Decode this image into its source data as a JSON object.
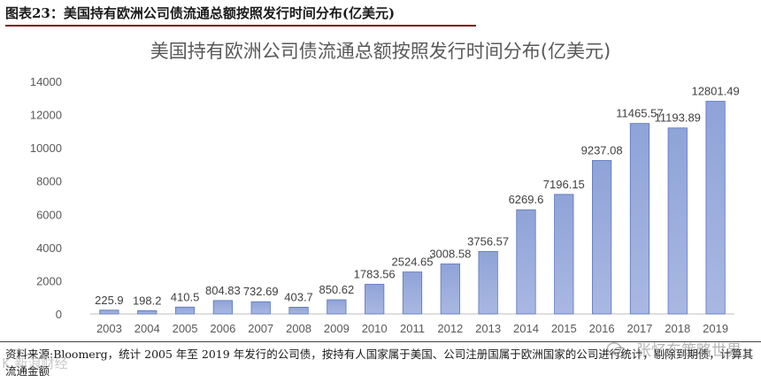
{
  "figure": {
    "caption": "图表23：美国持有欧洲公司债流通总额按照发行时间分布(亿美元)",
    "source_note": "资料来源:Bloomerg，统计 2005 年至 2019 年发行的公司债，按持有人国家属于美国、公司注册国属于欧洲国家的公司进行统计，剔除到期债，计算其流通金额",
    "watermark": "张忆东策略世界",
    "left_watermark": "K 新浪财经",
    "accent_color": "#7a1a1a"
  },
  "chart_data": {
    "type": "bar",
    "title": "美国持有欧洲公司债流通总额按照发行时间分布(亿美元)",
    "categories": [
      "2003",
      "2004",
      "2005",
      "2006",
      "2007",
      "2008",
      "2009",
      "2010",
      "2011",
      "2012",
      "2013",
      "2014",
      "2015",
      "2016",
      "2017",
      "2018",
      "2019"
    ],
    "values": [
      225.9,
      198.2,
      410.5,
      804.83,
      732.69,
      403.7,
      850.62,
      1783.56,
      2524.65,
      3008.58,
      3756.57,
      6269.6,
      7196.15,
      9237.08,
      11465.57,
      11193.89,
      12801.49
    ],
    "data_labels": [
      "225.9",
      "198.2",
      "410.5",
      "804.83",
      "732.69",
      "403.7",
      "850.62",
      "1783.56",
      "2524.65",
      "3008.58",
      "3756.57",
      "6269.6",
      "7196.15",
      "9237.08",
      "11465.57",
      "11193.89",
      "12801.49"
    ],
    "yticks": [
      "0",
      "2000",
      "4000",
      "6000",
      "8000",
      "10000",
      "12000",
      "14000"
    ],
    "ylim": [
      0,
      14000
    ],
    "xlabel": "",
    "ylabel": "",
    "grid": false,
    "legend": "none",
    "bar_color_top": "#8fa3d8",
    "bar_color_bottom": "#a9b8e2",
    "bar_stroke": "#5b74bd",
    "axis_color": "#bfbfbf"
  }
}
